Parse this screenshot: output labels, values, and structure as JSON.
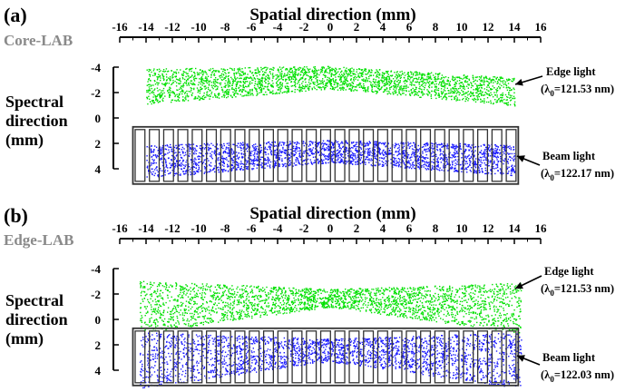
{
  "chart_data": [
    {
      "panel_label": "(a)",
      "type": "scatter",
      "title": "Spatial direction (mm)",
      "subtitle": "Core-LAB",
      "xlabel": "Spatial direction (mm)",
      "ylabel": [
        "Spectral",
        "direction",
        "(mm)"
      ],
      "x_ticks": [
        "-16",
        "-14",
        "-12",
        "-10",
        "-8",
        "-6",
        "-4",
        "-2",
        "0",
        "2",
        "4",
        "6",
        "8",
        "10",
        "12",
        "14",
        "16"
      ],
      "y_ticks": [
        "-4",
        "-2",
        "0",
        "2",
        "4"
      ],
      "xlim": [
        -16,
        16
      ],
      "ylim": [
        -4,
        4
      ],
      "y_inverted": true,
      "slit_grid": {
        "x_range": [
          -15,
          14.3
        ],
        "y_range": [
          0.7,
          5.2
        ],
        "columns": 27
      },
      "series": [
        {
          "annotation": {
            "line1": "Edge light",
            "lambda_symbol": "λ",
            "lambda_sub": "0",
            "value": "=121.53 nm"
          },
          "color": "#00e000",
          "x_range": [
            -14,
            14
          ],
          "center_y": [
            [
              -14,
              -2.5
            ],
            [
              0,
              -3.2
            ],
            [
              14,
              -2.1
            ]
          ],
          "half_thickness": [
            [
              -14,
              1.4
            ],
            [
              0,
              0.9
            ],
            [
              14,
              1.1
            ]
          ]
        },
        {
          "annotation": {
            "line1": "Beam light",
            "lambda_symbol": "λ",
            "lambda_sub": "0",
            "value": "=122.17 nm"
          },
          "color": "#1a1aff",
          "x_range": [
            -14,
            14
          ],
          "center_y": [
            [
              -14,
              3.4
            ],
            [
              0,
              2.6
            ],
            [
              14,
              3.3
            ]
          ],
          "half_thickness": [
            [
              -14,
              1.3
            ],
            [
              0,
              0.9
            ],
            [
              14,
              1.2
            ]
          ]
        }
      ]
    },
    {
      "panel_label": "(b)",
      "type": "scatter",
      "title": "Spatial direction (mm)",
      "subtitle": "Edge-LAB",
      "xlabel": "Spatial direction (mm)",
      "ylabel": [
        "Spectral",
        "direction",
        "(mm)"
      ],
      "x_ticks": [
        "-16",
        "-14",
        "-12",
        "-10",
        "-8",
        "-6",
        "-4",
        "-2",
        "0",
        "2",
        "4",
        "6",
        "8",
        "10",
        "12",
        "14",
        "16"
      ],
      "y_ticks": [
        "-4",
        "-2",
        "0",
        "2",
        "4"
      ],
      "xlim": [
        -16,
        16
      ],
      "ylim": [
        -4,
        4
      ],
      "y_inverted": true,
      "slit_grid": {
        "x_range": [
          -15,
          14.3
        ],
        "y_range": [
          0.7,
          5.2
        ],
        "columns": 27
      },
      "series": [
        {
          "annotation": {
            "line1": "Edge light",
            "lambda_symbol": "λ",
            "lambda_sub": "0",
            "value": "=121.53 nm"
          },
          "color": "#00e000",
          "x_range": [
            -14.5,
            14.5
          ],
          "center_y": [
            [
              -14.5,
              -1.0
            ],
            [
              0,
              -1.7
            ],
            [
              14.5,
              -0.9
            ]
          ],
          "half_thickness": [
            [
              -14.5,
              2.1
            ],
            [
              0,
              0.7
            ],
            [
              14.5,
              2.0
            ]
          ]
        },
        {
          "annotation": {
            "line1": "Beam light",
            "lambda_symbol": "λ",
            "lambda_sub": "0",
            "value": "=122.03 nm"
          },
          "color": "#1a1aff",
          "x_range": [
            -14.5,
            14.5
          ],
          "center_y": [
            [
              -14.5,
              3.2
            ],
            [
              0,
              2.4
            ],
            [
              14.5,
              3.2
            ]
          ],
          "half_thickness": [
            [
              -14.5,
              2.2
            ],
            [
              0,
              0.9
            ],
            [
              14.5,
              2.2
            ]
          ]
        }
      ]
    }
  ]
}
